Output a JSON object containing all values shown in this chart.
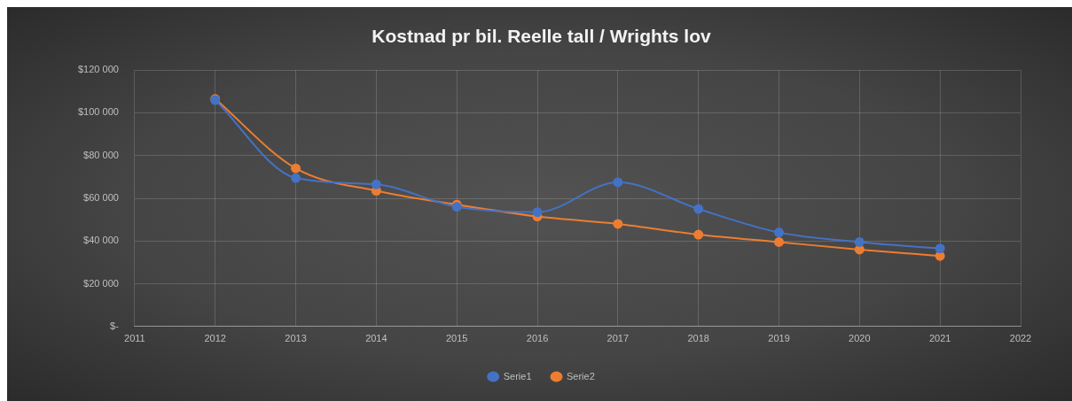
{
  "chart_data": {
    "type": "line",
    "title": "Kostnad pr bil. Reelle tall / Wrights lov",
    "x": [
      2012,
      2013,
      2014,
      2015,
      2016,
      2017,
      2018,
      2019,
      2020,
      2021
    ],
    "series": [
      {
        "name": "Serie1",
        "color": "#4472c4",
        "values": [
          106000,
          69500,
          66500,
          56000,
          53500,
          67500,
          55000,
          44000,
          39500,
          36500
        ]
      },
      {
        "name": "Serie2",
        "color": "#ed7d31",
        "values": [
          106500,
          74000,
          63500,
          57000,
          51500,
          48000,
          43000,
          39500,
          36000,
          33000
        ]
      }
    ],
    "xlim": [
      2011,
      2022
    ],
    "xticks": [
      2011,
      2012,
      2013,
      2014,
      2015,
      2016,
      2017,
      2018,
      2019,
      2020,
      2021,
      2022
    ],
    "ylim": [
      0,
      120000
    ],
    "yticks": [
      {
        "value": 0,
        "label": "$-"
      },
      {
        "value": 20000,
        "label": "$20 000"
      },
      {
        "value": 40000,
        "label": "$40 000"
      },
      {
        "value": 60000,
        "label": "$60 000"
      },
      {
        "value": 80000,
        "label": "$80 000"
      },
      {
        "value": 100000,
        "label": "$100 000"
      },
      {
        "value": 120000,
        "label": "$120 000"
      }
    ],
    "grid": true,
    "legend": "bottom",
    "marker": "circle"
  }
}
